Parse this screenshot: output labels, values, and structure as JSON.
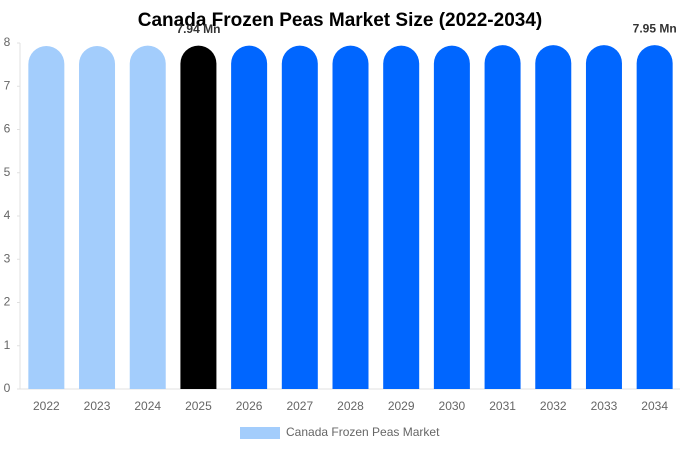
{
  "chart_data": {
    "type": "bar",
    "title": "Canada Frozen Peas Market Size (2022-2034)",
    "categories": [
      "2022",
      "2023",
      "2024",
      "2025",
      "2026",
      "2027",
      "2028",
      "2029",
      "2030",
      "2031",
      "2032",
      "2033",
      "2034"
    ],
    "series": [
      {
        "name": "Canada Frozen Peas Market",
        "color": "#a3cdfc",
        "colors": [
          "#a3cdfc",
          "#a3cdfc",
          "#a3cdfc",
          "#000000",
          "#0066ff",
          "#0066ff",
          "#0066ff",
          "#0066ff",
          "#0066ff",
          "#0066ff",
          "#0066ff",
          "#0066ff",
          "#0066ff"
        ],
        "values": [
          7.93,
          7.93,
          7.94,
          7.94,
          7.94,
          7.94,
          7.94,
          7.94,
          7.94,
          7.95,
          7.95,
          7.95,
          7.95
        ],
        "value_labels": [
          null,
          null,
          null,
          "7.94 Mn",
          null,
          null,
          null,
          null,
          null,
          null,
          null,
          null,
          "7.95 Mn"
        ]
      }
    ],
    "ylim": [
      0,
      8
    ],
    "yticks": [
      0,
      1,
      2,
      3,
      4,
      5,
      6,
      7,
      8
    ],
    "legend": "bottom"
  }
}
